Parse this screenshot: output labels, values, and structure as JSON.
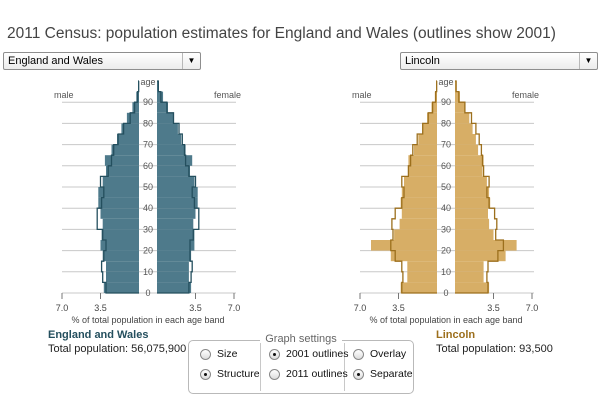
{
  "title": "2011 Census: population estimates for England and Wales (outlines show 2001)",
  "selects": {
    "left": "England and Wales",
    "right": "Lincoln"
  },
  "colors": {
    "left_fill": "#4e7a8b",
    "right_fill": "#d7ae66",
    "left_outline": "#244f5e",
    "right_outline": "#9c6f1c",
    "gridline": "#c8c8c8"
  },
  "areas": {
    "left": {
      "name": "England and Wales",
      "total": "Total population: 56,075,900"
    },
    "right": {
      "name": "Lincoln",
      "total": "Total population: 93,500"
    }
  },
  "settings": {
    "legend": "Graph settings",
    "options": [
      {
        "label": "Size",
        "selected": false
      },
      {
        "label": "Structure",
        "selected": true
      },
      {
        "label": "2001 outlines",
        "selected": true
      },
      {
        "label": "2011 outlines",
        "selected": false
      },
      {
        "label": "Overlay",
        "selected": false
      },
      {
        "label": "Separate",
        "selected": true
      }
    ]
  },
  "chart_data": [
    {
      "type": "bar",
      "orientation": "horizontal",
      "area": "England and Wales",
      "male_label": "male",
      "female_label": "female",
      "age_axis_label": "age",
      "age_ticks": [
        "0",
        "10",
        "20",
        "30",
        "40",
        "50",
        "60",
        "70",
        "80",
        "90"
      ],
      "x_ticks": [
        "7.0",
        "3.5",
        "3.5",
        "7.0"
      ],
      "xlabel": "% of total population in each age band",
      "xlim": [
        0,
        7.0
      ],
      "ylim": [
        0,
        100
      ],
      "age_band_width": 5,
      "age_bands": [
        "0-4",
        "5-9",
        "10-14",
        "15-19",
        "20-24",
        "25-29",
        "30-34",
        "35-39",
        "40-44",
        "45-49",
        "50-54",
        "55-59",
        "60-64",
        "65-69",
        "70-74",
        "75-79",
        "80-84",
        "85-89",
        "90-94",
        "95+"
      ],
      "series": [
        {
          "name": "male",
          "values": [
            3.2,
            3.0,
            3.0,
            3.3,
            3.5,
            3.4,
            3.3,
            3.5,
            3.7,
            3.7,
            3.3,
            3.0,
            3.1,
            2.5,
            2.0,
            1.6,
            1.1,
            0.6,
            0.25,
            0.06
          ]
        },
        {
          "name": "female",
          "values": [
            3.1,
            2.9,
            2.9,
            3.1,
            3.4,
            3.4,
            3.3,
            3.5,
            3.7,
            3.7,
            3.4,
            3.0,
            3.2,
            2.6,
            2.2,
            1.9,
            1.5,
            1.0,
            0.55,
            0.18
          ]
        },
        {
          "name": "2001 male",
          "values": [
            3.0,
            3.3,
            3.4,
            3.2,
            3.0,
            3.3,
            3.8,
            3.8,
            3.4,
            3.2,
            3.5,
            2.8,
            2.5,
            2.3,
            1.9,
            1.4,
            0.8,
            0.4,
            0.12,
            0.03
          ]
        },
        {
          "name": "2001 female",
          "values": [
            2.9,
            3.1,
            3.2,
            3.0,
            3.0,
            3.3,
            3.8,
            3.8,
            3.4,
            3.2,
            3.5,
            2.9,
            2.6,
            2.5,
            2.3,
            2.0,
            1.5,
            0.9,
            0.35,
            0.12
          ]
        }
      ]
    },
    {
      "type": "bar",
      "orientation": "horizontal",
      "area": "Lincoln",
      "male_label": "male",
      "female_label": "female",
      "age_axis_label": "age",
      "age_ticks": [
        "0",
        "10",
        "20",
        "30",
        "40",
        "50",
        "60",
        "70",
        "80",
        "90"
      ],
      "x_ticks": [
        "7.0",
        "3.5",
        "3.5",
        "7.0"
      ],
      "xlabel": "% of total population in each age band",
      "xlim": [
        0,
        7.0
      ],
      "ylim": [
        0,
        100
      ],
      "age_band_width": 5,
      "age_bands": [
        "0-4",
        "5-9",
        "10-14",
        "15-19",
        "20-24",
        "25-29",
        "30-34",
        "35-39",
        "40-44",
        "45-49",
        "50-54",
        "55-59",
        "60-64",
        "65-69",
        "70-74",
        "75-79",
        "80-84",
        "85-89",
        "90-94",
        "95+"
      ],
      "series": [
        {
          "name": "male",
          "values": [
            3.3,
            2.7,
            2.7,
            4.2,
            6.0,
            3.9,
            3.4,
            3.2,
            3.3,
            3.2,
            3.0,
            2.6,
            2.6,
            2.1,
            1.7,
            1.3,
            0.9,
            0.5,
            0.2,
            0.05
          ]
        },
        {
          "name": "female",
          "values": [
            3.1,
            2.6,
            2.6,
            4.6,
            5.6,
            3.5,
            3.1,
            3.0,
            3.2,
            3.1,
            2.9,
            2.5,
            2.6,
            2.1,
            1.9,
            1.6,
            1.3,
            0.9,
            0.45,
            0.15
          ]
        },
        {
          "name": "2001 male",
          "values": [
            3.2,
            3.1,
            3.2,
            3.8,
            4.2,
            4.0,
            4.1,
            3.8,
            3.2,
            3.0,
            3.2,
            2.6,
            2.4,
            2.2,
            1.8,
            1.3,
            0.8,
            0.4,
            0.12,
            0.03
          ]
        },
        {
          "name": "2001 female",
          "values": [
            3.0,
            2.9,
            3.0,
            3.9,
            4.4,
            3.7,
            3.8,
            3.6,
            3.1,
            2.9,
            3.1,
            2.6,
            2.5,
            2.4,
            2.2,
            1.9,
            1.5,
            0.9,
            0.35,
            0.1
          ]
        }
      ]
    }
  ]
}
